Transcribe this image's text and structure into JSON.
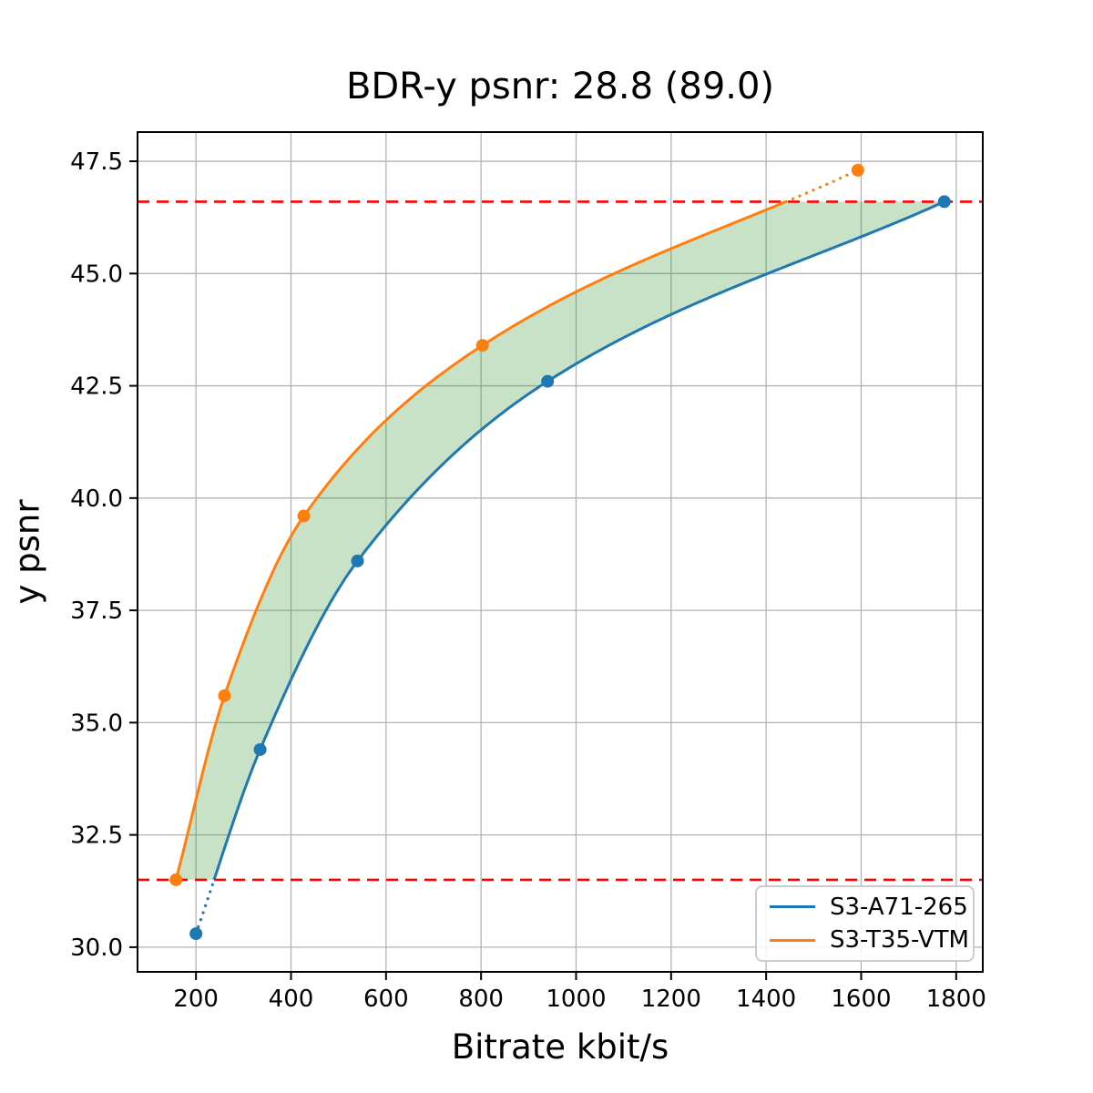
{
  "chart_data": {
    "type": "line",
    "title": "BDR-y psnr: 28.8 (89.0)",
    "xlabel": "Bitrate kbit/s",
    "ylabel": "y psnr",
    "xlim": [
      77,
      1856
    ],
    "ylim": [
      29.45,
      48.15
    ],
    "x_ticks": [
      200,
      400,
      600,
      800,
      1000,
      1200,
      1400,
      1600,
      1800
    ],
    "y_ticks": [
      30.0,
      32.5,
      35.0,
      37.5,
      40.0,
      42.5,
      45.0,
      47.5
    ],
    "grid": true,
    "legend_position": "lower right",
    "series": [
      {
        "name": "S3-A71-265",
        "color": "#1f77b4",
        "x": [
          200,
          335,
          540,
          940,
          1775
        ],
        "y": [
          30.3,
          34.4,
          38.6,
          42.6,
          46.6
        ],
        "note": "portion below lower red line drawn dotted"
      },
      {
        "name": "S3-T35-VTM",
        "color": "#ff7f0e",
        "x": [
          158,
          260,
          427,
          803,
          1593
        ],
        "y": [
          31.5,
          35.6,
          39.6,
          43.4,
          47.3
        ],
        "note": "portion above upper red line drawn dotted"
      }
    ],
    "hlines": {
      "values": [
        31.5,
        46.6
      ],
      "color": "#ff0000",
      "style": "dashed"
    },
    "fill_between": {
      "color": "#228b22",
      "alpha": 0.25,
      "between": [
        "S3-T35-VTM",
        "S3-A71-265"
      ],
      "y_range": [
        31.5,
        46.6
      ]
    },
    "colors": {
      "grid": "#b3b3b3",
      "spine": "#000000",
      "background": "#ffffff",
      "legend_border": "#cccccc"
    }
  }
}
